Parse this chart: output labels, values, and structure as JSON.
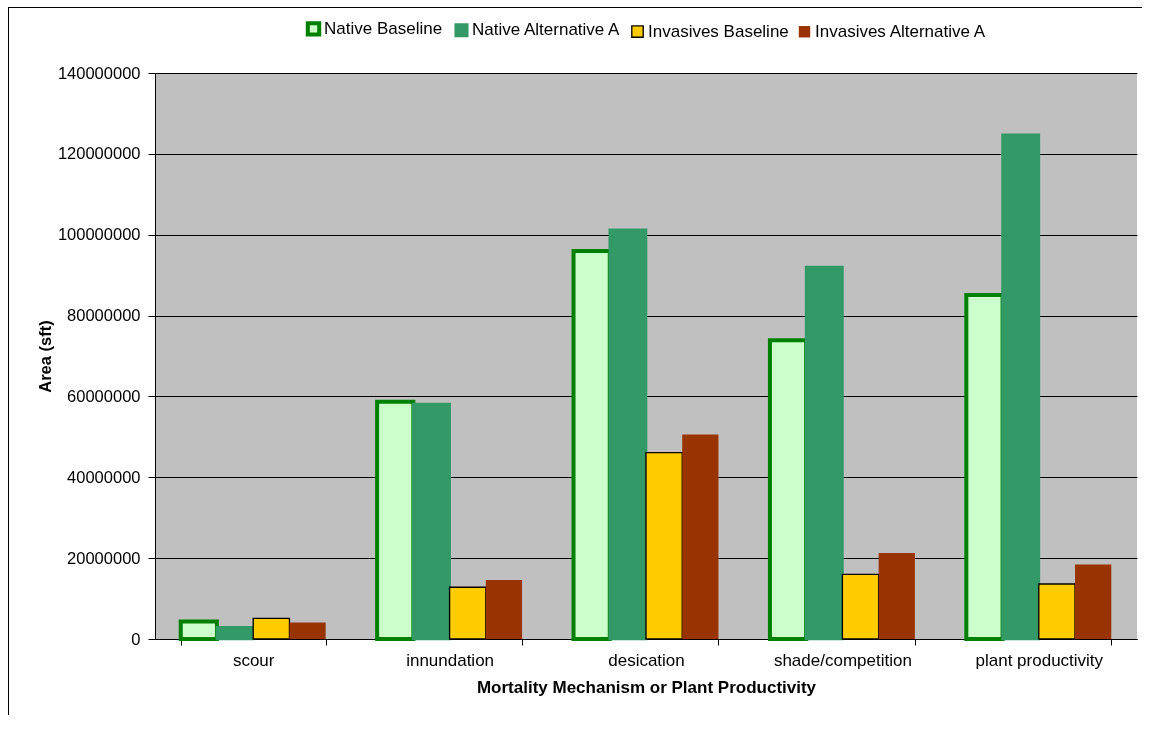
{
  "chart_data": {
    "type": "bar",
    "xlabel": "Mortality Mechanism or Plant Productivity",
    "ylabel": "Area (sft)",
    "categories": [
      "scour",
      "innundation",
      "desication",
      "shade/competition",
      "plant productivity"
    ],
    "series": [
      {
        "name": "Native Baseline",
        "color": "#ccffcc",
        "values": [
          4300000,
          58700000,
          96000000,
          73900000,
          85100000
        ]
      },
      {
        "name": "Native Alternative A",
        "color": "#339966",
        "values": [
          2900000,
          58100000,
          101200000,
          92000000,
          124700000
        ]
      },
      {
        "name": "Invasives Baseline",
        "color": "#ffcc00",
        "values": [
          5100000,
          12800000,
          46100000,
          16000000,
          13600000
        ]
      },
      {
        "name": "Invasives Alternative A",
        "color": "#993300",
        "values": [
          4100000,
          14600000,
          50600000,
          21300000,
          18400000
        ]
      }
    ],
    "ylim": [
      0,
      140000000
    ],
    "yticks": [
      0,
      20000000,
      40000000,
      60000000,
      80000000,
      100000000,
      120000000,
      140000000
    ],
    "grid": "y",
    "legend": "top"
  }
}
